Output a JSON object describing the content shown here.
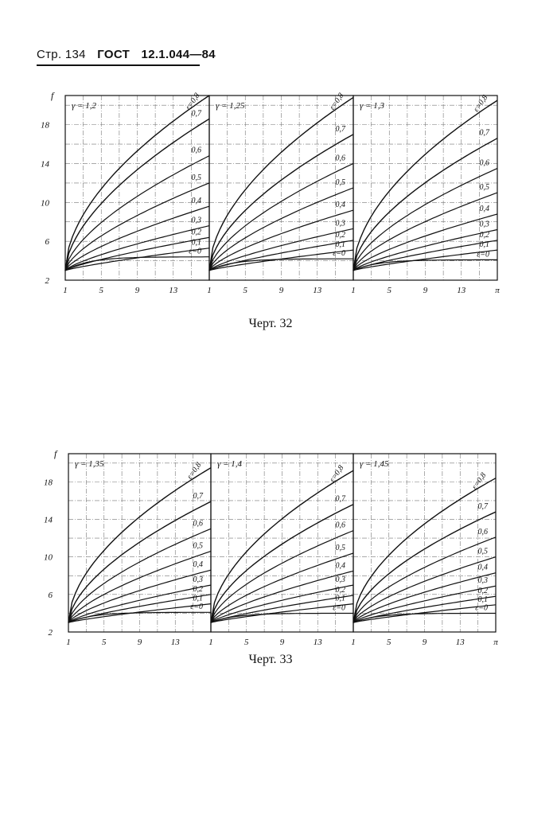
{
  "header": {
    "page": "Стр. 134",
    "standard": "ГОСТ",
    "number": "12.1.044—84"
  },
  "figures": [
    {
      "caption": "Черт. 32",
      "y_axis_label": "f",
      "y_ticks": [
        "18",
        "14",
        "10",
        "6",
        "2"
      ],
      "y_tick_values": [
        18,
        14,
        10,
        6,
        2
      ],
      "ylim": [
        2,
        21
      ],
      "panels": [
        {
          "gamma_label": "γ = 1,2",
          "x_ticks": [
            "1",
            "5",
            "9",
            "13"
          ],
          "x_tick_values": [
            1,
            5,
            9,
            13
          ],
          "end_label": "",
          "curves": [
            {
              "label": "ε=0,8",
              "end": 21.0
            },
            {
              "label": "0,7",
              "end": 18.6
            },
            {
              "label": "0,6",
              "end": 14.8
            },
            {
              "label": "0,5",
              "end": 12.0
            },
            {
              "label": "0,4",
              "end": 9.6
            },
            {
              "label": "0,3",
              "end": 7.6
            },
            {
              "label": "0,2",
              "end": 6.4
            },
            {
              "label": "0,1",
              "end": 5.3
            },
            {
              "label": "ε=0",
              "end": 4.4
            }
          ]
        },
        {
          "gamma_label": "γ = 1,25",
          "x_ticks": [
            "1",
            "5",
            "9",
            "13"
          ],
          "x_tick_values": [
            1,
            5,
            9,
            13
          ],
          "end_label": "",
          "curves": [
            {
              "label": "ε=0,8",
              "end": 20.8
            },
            {
              "label": "0,7",
              "end": 17.0
            },
            {
              "label": "0,6",
              "end": 14.0
            },
            {
              "label": "0,5",
              "end": 11.5
            },
            {
              "label": "0,4",
              "end": 9.2
            },
            {
              "label": "0,3",
              "end": 7.3
            },
            {
              "label": "0,2",
              "end": 6.1
            },
            {
              "label": "0,1",
              "end": 5.1
            },
            {
              "label": "ε=0",
              "end": 4.2
            }
          ]
        },
        {
          "gamma_label": "γ = 1,3",
          "x_ticks": [
            "1",
            "5",
            "9",
            "13"
          ],
          "x_tick_values": [
            1,
            5,
            9,
            13
          ],
          "end_label": "π",
          "curves": [
            {
              "label": "ε=0,8",
              "end": 20.5
            },
            {
              "label": "0,7",
              "end": 16.6
            },
            {
              "label": "0,6",
              "end": 13.5
            },
            {
              "label": "0,5",
              "end": 11.0
            },
            {
              "label": "0,4",
              "end": 8.8
            },
            {
              "label": "0,3",
              "end": 7.2
            },
            {
              "label": "0,2",
              "end": 6.1
            },
            {
              "label": "0,1",
              "end": 5.1
            },
            {
              "label": "ε=0",
              "end": 4.1
            }
          ]
        }
      ]
    },
    {
      "caption": "Черт. 33",
      "y_axis_label": "f",
      "y_ticks": [
        "18",
        "14",
        "10",
        "6",
        "2"
      ],
      "y_tick_values": [
        18,
        14,
        10,
        6,
        2
      ],
      "ylim": [
        2,
        21
      ],
      "panels": [
        {
          "gamma_label": "γ = 1,35",
          "x_ticks": [
            "1",
            "5",
            "9",
            "13"
          ],
          "x_tick_values": [
            1,
            5,
            9,
            13
          ],
          "end_label": "",
          "curves": [
            {
              "label": "ε=0,8",
              "end": 19.5
            },
            {
              "label": "0,7",
              "end": 15.9
            },
            {
              "label": "0,6",
              "end": 13.0
            },
            {
              "label": "0,5",
              "end": 10.6
            },
            {
              "label": "0,4",
              "end": 8.6
            },
            {
              "label": "0,3",
              "end": 7.0
            },
            {
              "label": "0,2",
              "end": 6.0
            },
            {
              "label": "0,1",
              "end": 5.0
            },
            {
              "label": "ε=0",
              "end": 4.1
            }
          ]
        },
        {
          "gamma_label": "γ = 1,4",
          "x_ticks": [
            "1",
            "5",
            "9",
            "13"
          ],
          "x_tick_values": [
            1,
            5,
            9,
            13
          ],
          "end_label": "",
          "curves": [
            {
              "label": "ε=0,8",
              "end": 19.2
            },
            {
              "label": "0,7",
              "end": 15.6
            },
            {
              "label": "0,6",
              "end": 12.8
            },
            {
              "label": "0,5",
              "end": 10.4
            },
            {
              "label": "0,4",
              "end": 8.5
            },
            {
              "label": "0,3",
              "end": 7.0
            },
            {
              "label": "0,2",
              "end": 5.9
            },
            {
              "label": "0,1",
              "end": 5.0
            },
            {
              "label": "ε=0",
              "end": 4.0
            }
          ]
        },
        {
          "gamma_label": "γ = 1,45",
          "x_ticks": [
            "1",
            "5",
            "9",
            "13"
          ],
          "x_tick_values": [
            1,
            5,
            9,
            13
          ],
          "end_label": "π",
          "curves": [
            {
              "label": "ε=0,8",
              "end": 18.4
            },
            {
              "label": "0,7",
              "end": 14.8
            },
            {
              "label": "0,6",
              "end": 12.1
            },
            {
              "label": "0,5",
              "end": 10.0
            },
            {
              "label": "0,4",
              "end": 8.3
            },
            {
              "label": "0,3",
              "end": 6.9
            },
            {
              "label": "0,2",
              "end": 5.8
            },
            {
              "label": "0,1",
              "end": 4.9
            },
            {
              "label": "ε=0",
              "end": 4.0
            }
          ]
        }
      ]
    }
  ],
  "chart_data": [
    {
      "type": "line",
      "title": "Черт. 32",
      "ylabel": "f",
      "xlabel": "π",
      "x": [
        1,
        17
      ],
      "ylim": [
        2,
        21
      ],
      "grid": true,
      "panels": [
        "γ = 1,2",
        "γ = 1,25",
        "γ = 1,3"
      ],
      "series_labels": [
        "ε=0,8",
        "0,7",
        "0,6",
        "0,5",
        "0,4",
        "0,3",
        "0,2",
        "0,1",
        "ε=0"
      ]
    },
    {
      "type": "line",
      "title": "Черт. 33",
      "ylabel": "f",
      "xlabel": "π",
      "x": [
        1,
        17
      ],
      "ylim": [
        2,
        21
      ],
      "grid": true,
      "panels": [
        "γ = 1,35",
        "γ = 1,4",
        "γ = 1,45"
      ],
      "series_labels": [
        "ε=0,8",
        "0,7",
        "0,6",
        "0,5",
        "0,4",
        "0,3",
        "0,2",
        "0,1",
        "ε=0"
      ]
    }
  ]
}
